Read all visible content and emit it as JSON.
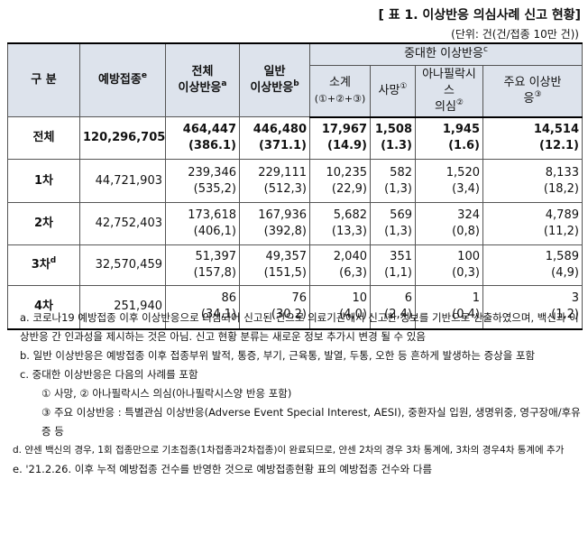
{
  "title": "[ 표 1. 이상반응 의심사례 신고 현황]",
  "unit": "(단위: 건(건/접종 10만 건))",
  "table": {
    "headers": {
      "category": "구 분",
      "vaccinations": {
        "label": "예방접종",
        "sup": "e"
      },
      "total": {
        "lines": [
          "전체",
          "이상반응"
        ],
        "sup": "a"
      },
      "general": {
        "lines": [
          "일반",
          "이상반응"
        ],
        "sup": "b"
      },
      "serious": {
        "label": "중대한 이상반응",
        "sup": "c"
      },
      "subtotal": {
        "lines": [
          "소계",
          "(①+②+③)"
        ]
      },
      "death": {
        "label": "사망",
        "sup": "①"
      },
      "anaphylaxis": {
        "lines": [
          "아나필락시스",
          "의심"
        ],
        "sup": "②"
      },
      "major": {
        "lines": [
          "주요 이상반",
          "응"
        ],
        "sup": "③"
      }
    },
    "rows": [
      {
        "label": "전체",
        "vaccinations": "120,296,705",
        "cells": [
          [
            "464,447",
            "(386.1)"
          ],
          [
            "446,480",
            "(371.1)"
          ],
          [
            "17,967",
            "(14.9)"
          ],
          [
            "1,508",
            "(1.3)"
          ],
          [
            "1,945",
            "(1.6)"
          ],
          [
            "14,514",
            "(12.1)"
          ]
        ]
      },
      {
        "label": "1차",
        "vaccinations": "44,721,903",
        "cells": [
          [
            "239,346",
            "(535,2)"
          ],
          [
            "229,111",
            "(512,3)"
          ],
          [
            "10,235",
            "(22,9)"
          ],
          [
            "582",
            "(1,3)"
          ],
          [
            "1,520",
            "(3,4)"
          ],
          [
            "8,133",
            "(18,2)"
          ]
        ]
      },
      {
        "label": "2차",
        "vaccinations": "42,752,403",
        "cells": [
          [
            "173,618",
            "(406,1)"
          ],
          [
            "167,936",
            "(392,8)"
          ],
          [
            "5,682",
            "(13,3)"
          ],
          [
            "569",
            "(1,3)"
          ],
          [
            "324",
            "(0,8)"
          ],
          [
            "4,789",
            "(11,2)"
          ]
        ]
      },
      {
        "label": "3차",
        "sup": "d",
        "vaccinations": "32,570,459",
        "cells": [
          [
            "51,397",
            "(157,8)"
          ],
          [
            "49,357",
            "(151,5)"
          ],
          [
            "2,040",
            "(6,3)"
          ],
          [
            "351",
            "(1,1)"
          ],
          [
            "100",
            "(0,3)"
          ],
          [
            "1,589",
            "(4,9)"
          ]
        ]
      },
      {
        "label": "4차",
        "vaccinations": "251,940",
        "cells": [
          [
            "86",
            "(34,1)"
          ],
          [
            "76",
            "(30,2)"
          ],
          [
            "10",
            "(4,0)"
          ],
          [
            "6",
            "(2,4)"
          ],
          [
            "1",
            "(0,4)"
          ],
          [
            "3",
            "(1,2)"
          ]
        ]
      }
    ]
  },
  "footnotes": {
    "a": "a. 코로나19 예방접종 이후 이상반응으로 의심되어 신고된 건으로 의료기관에서 신고한 정보를 기반으로 산출하였으며, 백신과 이상반응 간 인과성을 제시하는 것은 아님. 신고 현황 분류는 새로운 정보 추가시 변경 될 수 있음",
    "b": "b. 일반 이상반응은 예방접종 이후 접종부위 발적, 통증, 부기, 근육통, 발열, 두통, 오한 등 흔하게 발생하는 증상을 포함",
    "c": "c. 중대한 이상반응은 다음의 사례를 포함",
    "c1": "① 사망, ② 아나필락시스 의심(아나필락시스양 반응 포함)",
    "c2": "③ 주요 이상반응 : 특별관심 이상반응(Adverse Event Special Interest, AESI), 중환자실 입원, 생명위중, 영구장애/후유증 등",
    "d": "d. 얀센 백신의 경우, 1회 접종만으로 기초접종(1차접종과2차접종)이 완료되므로, 얀센 2차의 경우 3차 통계에, 3차의 경우4차 통계에 추가",
    "e": "e. '21.2.26. 이후 누적 예방접종 건수를 반영한 것으로 예방접종현황 표의 예방접종 건수와 다름"
  }
}
